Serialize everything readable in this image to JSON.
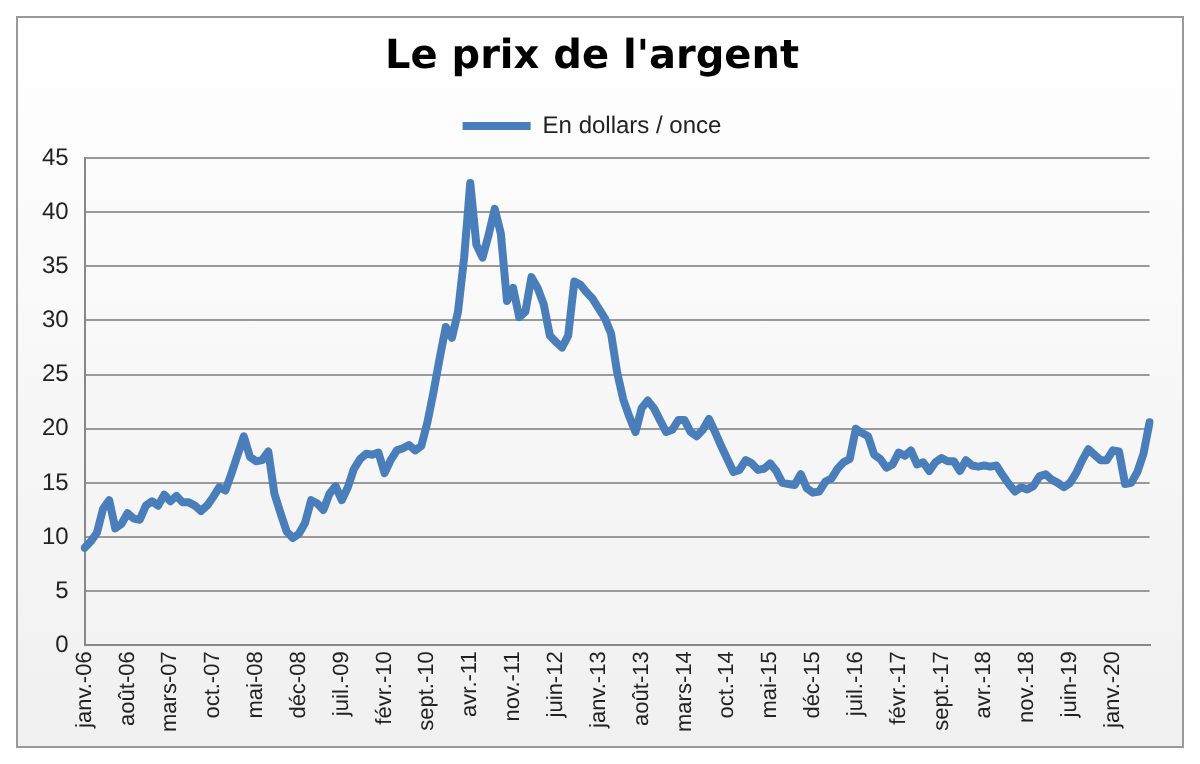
{
  "chart_data": {
    "type": "line",
    "title": "Le prix de l'argent",
    "categories": [
      "janv.-06",
      null,
      null,
      null,
      null,
      null,
      null,
      "août-06",
      null,
      null,
      null,
      null,
      null,
      null,
      "mars-07",
      null,
      null,
      null,
      null,
      null,
      null,
      "oct.-07",
      null,
      null,
      null,
      null,
      null,
      null,
      "mai-08",
      null,
      null,
      null,
      null,
      null,
      null,
      "déc-08",
      null,
      null,
      null,
      null,
      null,
      null,
      "juil.-09",
      null,
      null,
      null,
      null,
      null,
      null,
      "févr.-10",
      null,
      null,
      null,
      null,
      null,
      null,
      "sept.-10",
      null,
      null,
      null,
      null,
      null,
      null,
      "avr.-11",
      null,
      null,
      null,
      null,
      null,
      null,
      "nov.-11",
      null,
      null,
      null,
      null,
      null,
      null,
      "juin-12",
      null,
      null,
      null,
      null,
      null,
      null,
      "janv.-13",
      null,
      null,
      null,
      null,
      null,
      null,
      "août-13",
      null,
      null,
      null,
      null,
      null,
      null,
      "mars-14",
      null,
      null,
      null,
      null,
      null,
      null,
      "oct.-14",
      null,
      null,
      null,
      null,
      null,
      null,
      "mai-15",
      null,
      null,
      null,
      null,
      null,
      null,
      "déc-15",
      null,
      null,
      null,
      null,
      null,
      null,
      "juil.-16",
      null,
      null,
      null,
      null,
      null,
      null,
      "févr.-17",
      null,
      null,
      null,
      null,
      null,
      null,
      "sept.-17",
      null,
      null,
      null,
      null,
      null,
      null,
      "avr.-18",
      null,
      null,
      null,
      null,
      null,
      null,
      "nov.-18",
      null,
      null,
      null,
      null,
      null,
      null,
      "juin-19",
      null,
      null,
      null,
      null,
      null,
      null,
      "janv.-20",
      null,
      null,
      null,
      null,
      null,
      null
    ],
    "series": [
      {
        "name": "En dollars / once",
        "color": "#4a7ebb",
        "values": [
          9.0,
          9.6,
          10.4,
          12.6,
          13.4,
          10.8,
          11.2,
          12.2,
          11.7,
          11.6,
          12.9,
          13.3,
          12.9,
          13.9,
          13.3,
          13.8,
          13.2,
          13.2,
          12.9,
          12.4,
          12.9,
          13.7,
          14.6,
          14.3,
          15.9,
          17.6,
          19.3,
          17.4,
          17.0,
          17.1,
          17.9,
          14.0,
          12.2,
          10.5,
          9.9,
          10.3,
          11.3,
          13.4,
          13.1,
          12.5,
          14.0,
          14.7,
          13.4,
          14.6,
          16.3,
          17.2,
          17.7,
          17.6,
          17.8,
          15.9,
          17.1,
          18.0,
          18.2,
          18.5,
          18.0,
          18.4,
          20.6,
          23.4,
          26.5,
          29.4,
          28.4,
          30.8,
          35.8,
          42.7,
          37.0,
          35.8,
          37.9,
          40.3,
          38.0,
          31.8,
          33.0,
          30.3,
          30.8,
          34.0,
          33.0,
          31.5,
          28.6,
          28.0,
          27.5,
          28.6,
          33.6,
          33.3,
          32.6,
          32.0,
          31.1,
          30.2,
          28.8,
          25.2,
          22.7,
          21.1,
          19.7,
          21.9,
          22.6,
          21.9,
          20.8,
          19.7,
          19.9,
          20.8,
          20.8,
          19.7,
          19.3,
          19.9,
          20.9,
          19.7,
          18.4,
          17.2,
          16.0,
          16.2,
          17.1,
          16.8,
          16.2,
          16.3,
          16.8,
          16.1,
          15.0,
          14.9,
          14.8,
          15.8,
          14.5,
          14.1,
          14.2,
          15.1,
          15.4,
          16.3,
          16.9,
          17.2,
          20.0,
          19.6,
          19.3,
          17.6,
          17.2,
          16.4,
          16.7,
          17.8,
          17.5,
          18.0,
          16.7,
          16.9,
          16.1,
          16.9,
          17.3,
          17.0,
          17.0,
          16.1,
          17.1,
          16.6,
          16.5,
          16.6,
          16.5,
          16.6,
          15.7,
          14.9,
          14.2,
          14.6,
          14.4,
          14.7,
          15.6,
          15.8,
          15.3,
          15.0,
          14.6,
          15.0,
          15.9,
          17.1,
          18.1,
          17.6,
          17.1,
          17.1,
          18.0,
          17.9,
          14.9,
          15.0,
          16.0,
          17.7,
          20.6
        ]
      }
    ],
    "ylim": [
      0,
      45
    ],
    "yticks": [
      0,
      5,
      10,
      15,
      20,
      25,
      30,
      35,
      40,
      45
    ],
    "grid": "y",
    "legend": "top",
    "marker": "none",
    "line_style": "solid"
  }
}
